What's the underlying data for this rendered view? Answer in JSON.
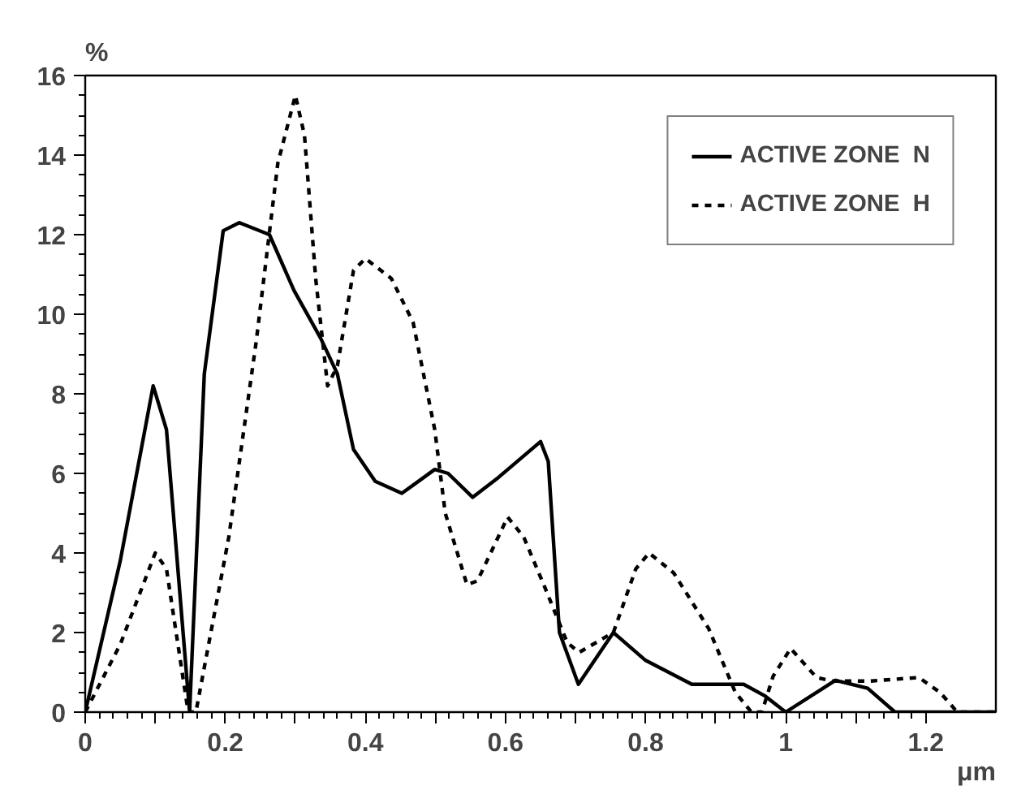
{
  "chart_data": {
    "type": "line",
    "xlabel": "μm",
    "ylabel": "%",
    "xlim": [
      0,
      1.3
    ],
    "ylim": [
      0,
      16
    ],
    "xticks": [
      0,
      {
        "value": 0.1,
        "label": null
      },
      0.2,
      {
        "value": 0.3,
        "label": null
      },
      0.4,
      {
        "value": 0.5,
        "label": null
      },
      0.6,
      {
        "value": 0.7,
        "label": null
      },
      0.8,
      {
        "value": 0.9,
        "label": null
      },
      1,
      {
        "value": 1.1,
        "label": null
      },
      1.2
    ],
    "yticks": [
      0,
      2,
      4,
      6,
      8,
      10,
      12,
      14,
      16
    ],
    "grid": false,
    "legend": "top right",
    "series": [
      {
        "name": "ACTIVE ZONE  N",
        "color": "#000000",
        "line_style": "solid",
        "x": [
          0,
          0.05,
          0.097,
          0.116,
          0.149,
          0.17,
          0.197,
          0.22,
          0.263,
          0.298,
          0.336,
          0.36,
          0.383,
          0.414,
          0.452,
          0.499,
          0.518,
          0.553,
          0.59,
          0.65,
          0.661,
          0.677,
          0.704,
          0.754,
          0.8,
          0.866,
          0.94,
          0.971,
          1.0,
          1.071,
          1.117,
          1.156,
          1.195,
          1.3
        ],
        "values": [
          0,
          3.8,
          8.2,
          7.1,
          0,
          8.5,
          12.1,
          12.3,
          12.0,
          10.6,
          9.4,
          8.5,
          6.6,
          5.8,
          5.5,
          6.1,
          6.0,
          5.4,
          5.9,
          6.8,
          6.3,
          2.0,
          0.7,
          2.0,
          1.3,
          0.7,
          0.7,
          0.4,
          0,
          0.8,
          0.6,
          0,
          0,
          0
        ]
      },
      {
        "name": "ACTIVE ZONE  H",
        "color": "#000000",
        "line_style": "dashed",
        "x": [
          0,
          0.05,
          0.1,
          0.116,
          0.147,
          0.158,
          0.205,
          0.244,
          0.275,
          0.3,
          0.313,
          0.329,
          0.346,
          0.36,
          0.383,
          0.4,
          0.437,
          0.468,
          0.499,
          0.514,
          0.545,
          0.56,
          0.603,
          0.626,
          0.657,
          0.688,
          0.705,
          0.754,
          0.786,
          0.805,
          0.84,
          0.89,
          0.928,
          0.951,
          0.966,
          0.982,
          1.007,
          1.044,
          1.067,
          1.121,
          1.19,
          1.22,
          1.245,
          1.3
        ],
        "values": [
          0,
          1.7,
          4.0,
          3.6,
          0,
          0,
          4.4,
          9.3,
          13.8,
          15.5,
          14.5,
          10.9,
          8.2,
          8.7,
          11.1,
          11.4,
          10.9,
          9.8,
          7.1,
          5.0,
          3.2,
          3.3,
          4.9,
          4.4,
          3.1,
          1.75,
          1.5,
          2.0,
          3.6,
          4.0,
          3.5,
          2.1,
          0.5,
          0,
          0,
          0.9,
          1.6,
          0.87,
          0.78,
          0.78,
          0.87,
          0.5,
          0,
          0
        ]
      }
    ]
  }
}
